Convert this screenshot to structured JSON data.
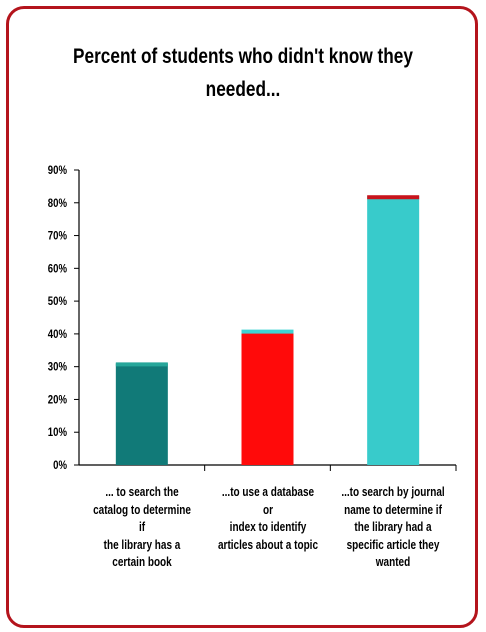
{
  "chart_data": {
    "type": "bar",
    "title_lines": [
      "Percent of students who didn't know they",
      "needed..."
    ],
    "categories": [
      [
        "... to search the",
        "catalog to determine if",
        "the library has a",
        "certain book"
      ],
      [
        "...to use a database or",
        "index to identify",
        "articles about a topic"
      ],
      [
        "...to search by journal",
        "name to determine if",
        "the library had a",
        "specific article they",
        "wanted"
      ]
    ],
    "values": [
      31,
      41,
      82
    ],
    "ylim": [
      0,
      90
    ],
    "yticks": [
      "0%",
      "10%",
      "20%",
      "30%",
      "40%",
      "50%",
      "60%",
      "70%",
      "80%",
      "90%"
    ],
    "bar_colors": [
      "#117a78",
      "#ff0a0a",
      "#38cbcb"
    ],
    "bar_top_colors": [
      "#26a69a",
      "#3fd3d3",
      "#c8141c"
    ],
    "border_color": "#b4141c",
    "grid": false,
    "legend": "none"
  }
}
